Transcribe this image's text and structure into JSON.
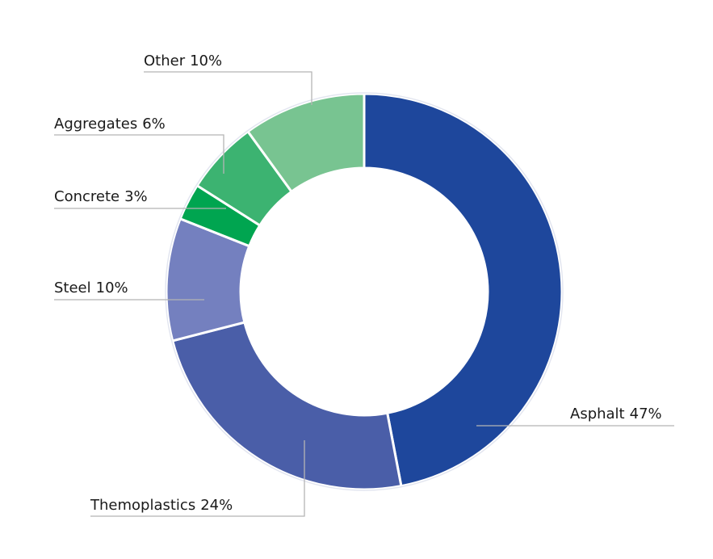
{
  "chart_data": {
    "type": "donut",
    "categories": [
      "Asphalt",
      "Themoplastics",
      "Steel",
      "Concrete",
      "Aggregates",
      "Other"
    ],
    "values": [
      47,
      24,
      10,
      3,
      6,
      10
    ],
    "value_labels": [
      "47%",
      "24%",
      "10%",
      "3%",
      "6%",
      "10%"
    ],
    "colors": [
      "#1e479c",
      "#4a5ea8",
      "#7480bf",
      "#00a550",
      "#3cb371",
      "#78c491"
    ]
  }
}
